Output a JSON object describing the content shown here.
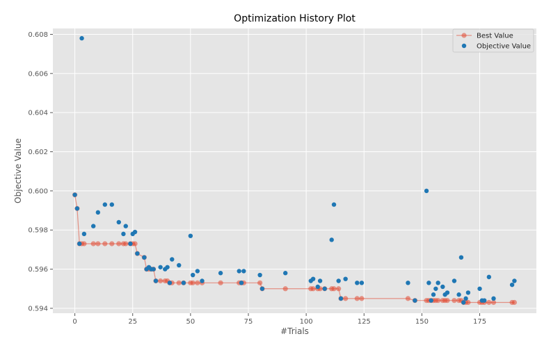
{
  "chart_data": {
    "type": "scatter",
    "title": "Optimization History Plot",
    "xlabel": "#Trials",
    "ylabel": "Objective Value",
    "xlim": [
      -9.5,
      199.5
    ],
    "ylim": [
      0.59375,
      0.6083
    ],
    "xticks": [
      0,
      25,
      50,
      75,
      100,
      125,
      150,
      175
    ],
    "yticks": [
      0.594,
      0.596,
      0.598,
      0.6,
      0.602,
      0.604,
      0.606,
      0.608
    ],
    "ytick_labels": [
      "0.594",
      "0.596",
      "0.598",
      "0.600",
      "0.602",
      "0.604",
      "0.606",
      "0.608"
    ],
    "grid": true,
    "legend_position": "top-right",
    "colors": {
      "background": "#e5e5e5",
      "grid": "#ffffff",
      "best": "#e24a33",
      "objective": "#1f77b4"
    },
    "series": [
      {
        "name": "Best Value",
        "kind": "line-markers",
        "points": [
          [
            0,
            0.5998
          ],
          [
            1,
            0.5991
          ],
          [
            2,
            0.5973
          ],
          [
            3,
            0.5973
          ],
          [
            4,
            0.5973
          ],
          [
            8,
            0.5973
          ],
          [
            10,
            0.5973
          ],
          [
            13,
            0.5973
          ],
          [
            16,
            0.5973
          ],
          [
            19,
            0.5973
          ],
          [
            21,
            0.5973
          ],
          [
            22,
            0.5973
          ],
          [
            24,
            0.5973
          ],
          [
            25,
            0.5973
          ],
          [
            26,
            0.5973
          ],
          [
            27,
            0.5968
          ],
          [
            30,
            0.5966
          ],
          [
            31,
            0.596
          ],
          [
            32,
            0.596
          ],
          [
            33,
            0.596
          ],
          [
            34,
            0.596
          ],
          [
            35,
            0.5954
          ],
          [
            37,
            0.5954
          ],
          [
            39,
            0.5954
          ],
          [
            40,
            0.5954
          ],
          [
            41,
            0.5953
          ],
          [
            42,
            0.5953
          ],
          [
            45,
            0.5953
          ],
          [
            47,
            0.5953
          ],
          [
            50,
            0.5953
          ],
          [
            51,
            0.5953
          ],
          [
            53,
            0.5953
          ],
          [
            55,
            0.5953
          ],
          [
            63,
            0.5953
          ],
          [
            71,
            0.5953
          ],
          [
            72,
            0.5953
          ],
          [
            73,
            0.5953
          ],
          [
            80,
            0.5953
          ],
          [
            81,
            0.595
          ],
          [
            91,
            0.595
          ],
          [
            102,
            0.595
          ],
          [
            103,
            0.595
          ],
          [
            105,
            0.595
          ],
          [
            106,
            0.595
          ],
          [
            108,
            0.595
          ],
          [
            111,
            0.595
          ],
          [
            112,
            0.595
          ],
          [
            114,
            0.595
          ],
          [
            115,
            0.5945
          ],
          [
            117,
            0.5945
          ],
          [
            122,
            0.5945
          ],
          [
            124,
            0.5945
          ],
          [
            144,
            0.5945
          ],
          [
            147,
            0.5944
          ],
          [
            152,
            0.5944
          ],
          [
            153,
            0.5944
          ],
          [
            154,
            0.5944
          ],
          [
            155,
            0.5944
          ],
          [
            156,
            0.5944
          ],
          [
            157,
            0.5944
          ],
          [
            159,
            0.5944
          ],
          [
            160,
            0.5944
          ],
          [
            161,
            0.5944
          ],
          [
            164,
            0.5944
          ],
          [
            166,
            0.5944
          ],
          [
            167,
            0.5944
          ],
          [
            168,
            0.5943
          ],
          [
            169,
            0.5943
          ],
          [
            170,
            0.5943
          ],
          [
            175,
            0.5943
          ],
          [
            176,
            0.5943
          ],
          [
            177,
            0.5943
          ],
          [
            179,
            0.5943
          ],
          [
            181,
            0.5943
          ],
          [
            189,
            0.5943
          ],
          [
            190,
            0.5943
          ]
        ]
      },
      {
        "name": "Objective Value",
        "kind": "scatter",
        "points": [
          [
            0,
            0.5998
          ],
          [
            1,
            0.5991
          ],
          [
            2,
            0.5973
          ],
          [
            3,
            0.6078
          ],
          [
            4,
            0.5978
          ],
          [
            8,
            0.5982
          ],
          [
            10,
            0.5989
          ],
          [
            13,
            0.5993
          ],
          [
            16,
            0.5993
          ],
          [
            19,
            0.5984
          ],
          [
            21,
            0.5978
          ],
          [
            22,
            0.5982
          ],
          [
            24,
            0.5973
          ],
          [
            25,
            0.5978
          ],
          [
            26,
            0.5979
          ],
          [
            27,
            0.5968
          ],
          [
            30,
            0.5966
          ],
          [
            31,
            0.596
          ],
          [
            32,
            0.5961
          ],
          [
            33,
            0.596
          ],
          [
            34,
            0.596
          ],
          [
            35,
            0.5954
          ],
          [
            37,
            0.5961
          ],
          [
            39,
            0.596
          ],
          [
            40,
            0.5961
          ],
          [
            41,
            0.5953
          ],
          [
            42,
            0.5965
          ],
          [
            45,
            0.5962
          ],
          [
            47,
            0.5953
          ],
          [
            50,
            0.5977
          ],
          [
            51,
            0.5957
          ],
          [
            53,
            0.5959
          ],
          [
            55,
            0.5954
          ],
          [
            63,
            0.5958
          ],
          [
            71,
            0.5959
          ],
          [
            72,
            0.5953
          ],
          [
            73,
            0.5959
          ],
          [
            80,
            0.5957
          ],
          [
            81,
            0.595
          ],
          [
            91,
            0.5958
          ],
          [
            102,
            0.5954
          ],
          [
            103,
            0.5955
          ],
          [
            105,
            0.5951
          ],
          [
            106,
            0.5954
          ],
          [
            108,
            0.595
          ],
          [
            111,
            0.5975
          ],
          [
            112,
            0.5993
          ],
          [
            114,
            0.5954
          ],
          [
            115,
            0.5945
          ],
          [
            117,
            0.5955
          ],
          [
            122,
            0.5953
          ],
          [
            124,
            0.5953
          ],
          [
            144,
            0.5953
          ],
          [
            147,
            0.5944
          ],
          [
            152,
            0.6
          ],
          [
            153,
            0.5953
          ],
          [
            154,
            0.5944
          ],
          [
            155,
            0.5947
          ],
          [
            156,
            0.595
          ],
          [
            157,
            0.5953
          ],
          [
            159,
            0.5951
          ],
          [
            160,
            0.5947
          ],
          [
            161,
            0.5948
          ],
          [
            164,
            0.5954
          ],
          [
            166,
            0.5947
          ],
          [
            167,
            0.5966
          ],
          [
            168,
            0.5943
          ],
          [
            169,
            0.5945
          ],
          [
            170,
            0.5948
          ],
          [
            175,
            0.595
          ],
          [
            176,
            0.5944
          ],
          [
            177,
            0.5944
          ],
          [
            179,
            0.5956
          ],
          [
            181,
            0.5945
          ],
          [
            189,
            0.5952
          ],
          [
            190,
            0.5954
          ]
        ]
      }
    ]
  }
}
